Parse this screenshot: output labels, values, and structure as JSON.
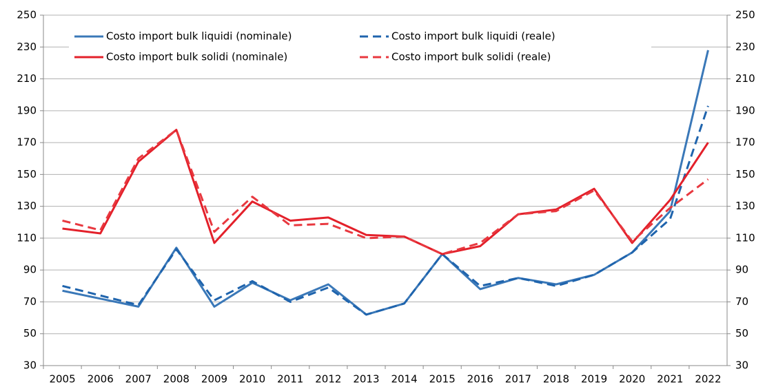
{
  "chart_data": {
    "type": "line",
    "categories": [
      "2005",
      "2006",
      "2007",
      "2008",
      "2009",
      "2010",
      "2011",
      "2012",
      "2013",
      "2014",
      "2015",
      "2016",
      "2017",
      "2018",
      "2019",
      "2020",
      "2021",
      "2022"
    ],
    "series": [
      {
        "name": "Costo import bulk liquidi (nominale)",
        "color": "#3a78b8",
        "dashed": false,
        "values": [
          77,
          72,
          67,
          104,
          67,
          82,
          71,
          81,
          62,
          69,
          100,
          78,
          85,
          81,
          87,
          101,
          127,
          228
        ]
      },
      {
        "name": "Costo import bulk liquidi (reale)",
        "color": "#1f64ad",
        "dashed": true,
        "values": [
          80,
          74,
          68,
          103,
          71,
          83,
          70,
          79,
          62,
          69,
          100,
          80,
          85,
          80,
          87,
          101,
          122,
          193
        ]
      },
      {
        "name": "Costo import bulk solidi (nominale)",
        "color": "#e3202a",
        "dashed": false,
        "values": [
          116,
          113,
          158,
          178,
          107,
          133,
          121,
          123,
          112,
          111,
          100,
          105,
          125,
          128,
          141,
          107,
          134,
          170
        ]
      },
      {
        "name": "Costo import bulk solidi (reale)",
        "color": "#e8383f",
        "dashed": true,
        "values": [
          121,
          115,
          160,
          178,
          114,
          136,
          118,
          119,
          110,
          111,
          100,
          107,
          125,
          127,
          140,
          108,
          129,
          147
        ]
      }
    ],
    "ylim": [
      30,
      250
    ],
    "yticks": [
      30,
      50,
      70,
      90,
      110,
      130,
      150,
      170,
      190,
      210,
      230,
      250
    ],
    "y2lim": [
      30,
      250
    ],
    "y2ticks": [
      30,
      50,
      70,
      90,
      110,
      130,
      150,
      170,
      190,
      210,
      230,
      250
    ],
    "grid": true,
    "legend": "top"
  }
}
